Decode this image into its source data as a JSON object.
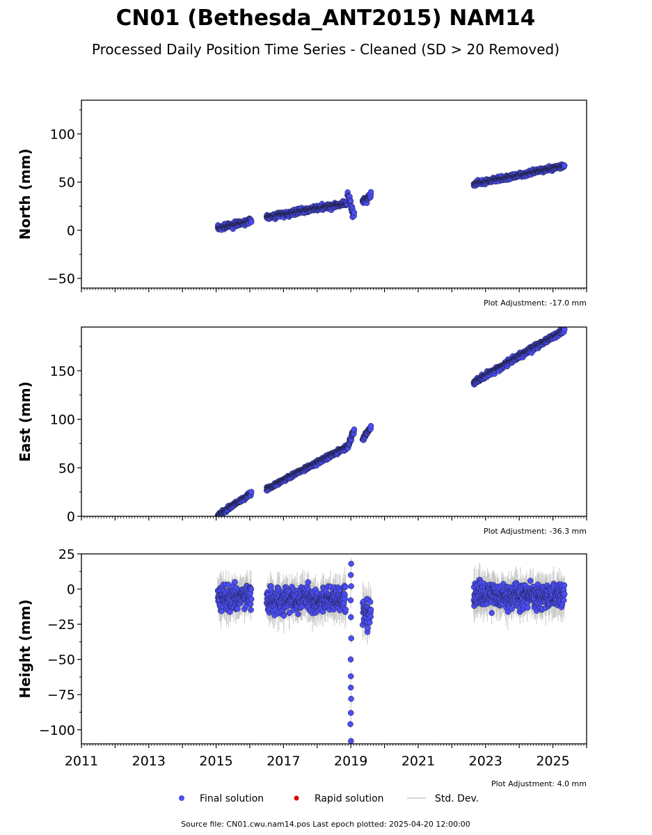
{
  "title": "CN01 (Bethesda_ANT2015) NAM14",
  "subtitle": "Processed Daily Position Time Series - Cleaned (SD > 20 Removed)",
  "source": "Source file: CN01.cwu.nam14.pos  Last epoch plotted: 2025-04-20 12:00:00",
  "legend": {
    "final": "Final solution",
    "rapid": "Rapid solution",
    "std": "Std. Dev.",
    "final_color": "#4b4ef5",
    "rapid_color": "#e00000",
    "std_color": "#c8c8c8"
  },
  "chart_data": [
    {
      "type": "scatter",
      "ylabel": "North (mm)",
      "adjustment": "Plot Adjustment: -17.0 mm",
      "xlim": [
        2011,
        2026
      ],
      "ylim": [
        -60,
        135
      ],
      "yticks": [
        -50,
        0,
        50,
        100
      ],
      "ytick_labels": [
        "−50",
        "0",
        "50",
        "100"
      ],
      "segments": [
        {
          "x": [
            2015.05,
            2016.05
          ],
          "y": [
            2,
            10
          ],
          "noise": 2.5
        },
        {
          "x": [
            2016.5,
            2018.9
          ],
          "y": [
            14,
            28
          ],
          "noise": 2.5
        },
        {
          "x": [
            2018.9,
            2019.1
          ],
          "y": [
            38,
            15
          ],
          "noise": 4
        },
        {
          "x": [
            2019.35,
            2019.6
          ],
          "y": [
            30,
            36
          ],
          "noise": 3
        },
        {
          "x": [
            2022.65,
            2025.35
          ],
          "y": [
            48,
            67
          ],
          "noise": 2.5
        }
      ]
    },
    {
      "type": "scatter",
      "ylabel": "East (mm)",
      "adjustment": "Plot Adjustment: -36.3 mm",
      "xlim": [
        2011,
        2026
      ],
      "ylim": [
        0,
        195
      ],
      "yticks": [
        0,
        50,
        100,
        150
      ],
      "ytick_labels": [
        "0",
        "50",
        "100",
        "150"
      ],
      "segments": [
        {
          "x": [
            2015.05,
            2016.05
          ],
          "y": [
            1,
            24
          ],
          "noise": 2
        },
        {
          "x": [
            2016.5,
            2018.9
          ],
          "y": [
            28,
            72
          ],
          "noise": 2
        },
        {
          "x": [
            2018.9,
            2019.1
          ],
          "y": [
            72,
            88
          ],
          "noise": 3
        },
        {
          "x": [
            2019.35,
            2019.6
          ],
          "y": [
            79,
            92
          ],
          "noise": 2
        },
        {
          "x": [
            2022.65,
            2025.35
          ],
          "y": [
            138,
            192
          ],
          "noise": 2.5
        }
      ]
    },
    {
      "type": "scatter",
      "ylabel": "Height (mm)",
      "adjustment": "Plot Adjustment: 4.0 mm",
      "xlim": [
        2011,
        2026
      ],
      "ylim": [
        -110,
        25
      ],
      "yticks": [
        -100,
        -75,
        -50,
        -25,
        0,
        25
      ],
      "ytick_labels": [
        "−100",
        "−75",
        "−50",
        "−25",
        "0",
        "25"
      ],
      "xticks": [
        2011,
        2013,
        2015,
        2017,
        2019,
        2021,
        2023,
        2025
      ],
      "xtick_labels": [
        "2011",
        "2013",
        "2015",
        "2017",
        "2019",
        "2021",
        "2023",
        "2025"
      ],
      "segments": [
        {
          "x": [
            2015.05,
            2016.05
          ],
          "y": [
            -6,
            -6
          ],
          "noise": 9
        },
        {
          "x": [
            2016.5,
            2018.85
          ],
          "y": [
            -8,
            -8
          ],
          "noise": 9
        },
        {
          "x": [
            2022.65,
            2025.35
          ],
          "y": [
            -5,
            -5
          ],
          "noise": 9
        },
        {
          "x": [
            2019.35,
            2019.6
          ],
          "y": [
            -18,
            -18
          ],
          "noise": 10
        }
      ],
      "spike": {
        "x": 2019.0,
        "values": [
          18,
          10,
          2,
          -8,
          -20,
          -35,
          -50,
          -62,
          -70,
          -78,
          -88,
          -96,
          -108
        ]
      }
    }
  ]
}
